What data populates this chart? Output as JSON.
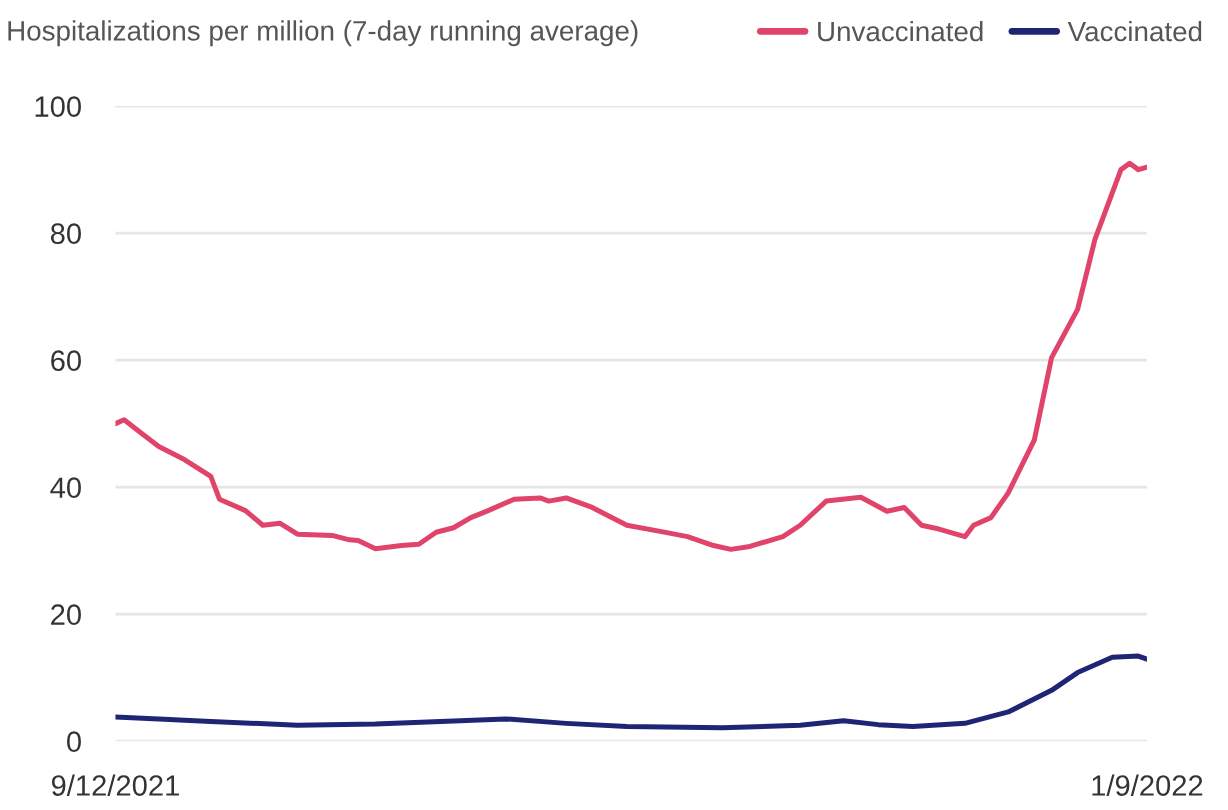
{
  "chart_data": {
    "type": "line",
    "title": "Hospitalizations per million (7-day running average)",
    "x": [
      "2021-09-12",
      "2021-09-13",
      "2021-09-15",
      "2021-09-17",
      "2021-09-20",
      "2021-09-23",
      "2021-09-24",
      "2021-09-27",
      "2021-09-29",
      "2021-10-01",
      "2021-10-03",
      "2021-10-07",
      "2021-10-09",
      "2021-10-10",
      "2021-10-12",
      "2021-10-15",
      "2021-10-17",
      "2021-10-19",
      "2021-10-21",
      "2021-10-23",
      "2021-10-25",
      "2021-10-28",
      "2021-10-31",
      "2021-11-01",
      "2021-11-03",
      "2021-11-06",
      "2021-11-10",
      "2021-11-14",
      "2021-11-17",
      "2021-11-20",
      "2021-11-22",
      "2021-11-24",
      "2021-11-28",
      "2021-11-30",
      "2021-12-03",
      "2021-12-07",
      "2021-12-10",
      "2021-12-12",
      "2021-12-14",
      "2021-12-16",
      "2021-12-19",
      "2021-12-20",
      "2021-12-22",
      "2021-12-24",
      "2021-12-27",
      "2021-12-29",
      "2022-01-01",
      "2022-01-03",
      "2022-01-06",
      "2022-01-07",
      "2022-01-08",
      "2022-01-09"
    ],
    "series": [
      {
        "name": "Unvaccinated",
        "color": "#e0446a",
        "values": [
          50.0,
          50.6,
          48.5,
          46.4,
          44.3,
          41.7,
          38.1,
          36.3,
          34,
          34.3,
          32.6,
          32.4,
          31.7,
          31.6,
          30.3,
          30.8,
          31,
          32.9,
          33.6,
          35.2,
          36.3,
          38.1,
          38.3,
          37.8,
          38.3,
          36.8,
          34,
          33,
          32.2,
          30.8,
          30.2,
          30.6,
          32.2,
          34,
          37.8,
          38.4,
          36.2,
          36.8,
          34,
          33.4,
          32.2,
          34,
          35.2,
          39.1,
          47.4,
          60.4,
          68,
          79,
          90,
          91,
          90,
          90.4
        ]
      },
      {
        "name": "Vaccinated",
        "color": "#1f2575",
        "x": [
          "2021-09-12",
          "2021-09-17",
          "2021-09-23",
          "2021-10-03",
          "2021-10-12",
          "2021-10-27",
          "2021-11-03",
          "2021-11-10",
          "2021-11-21",
          "2021-11-30",
          "2021-12-05",
          "2021-12-09",
          "2021-12-13",
          "2021-12-19",
          "2021-12-24",
          "2021-12-29",
          "2022-01-01",
          "2022-01-05",
          "2022-01-08",
          "2022-01-09"
        ],
        "values": [
          3.8,
          3.5,
          3.1,
          2.5,
          2.7,
          3.5,
          2.8,
          2.3,
          2.1,
          2.5,
          3.2,
          2.6,
          2.3,
          2.8,
          4.6,
          8.0,
          10.8,
          13.2,
          13.4,
          12.9
        ]
      }
    ],
    "xlim": [
      "2021-09-12",
      "2022-01-09"
    ],
    "xticks": [
      {
        "value": "2021-09-12",
        "label": "9/12/2021"
      },
      {
        "value": "2022-01-09",
        "label": "1/9/2022"
      }
    ],
    "ylim": [
      0,
      100
    ],
    "yticks": [
      0,
      20,
      40,
      60,
      80,
      100
    ],
    "grid": "y",
    "legend": "top right",
    "marker": "none",
    "line_style": "solid"
  }
}
